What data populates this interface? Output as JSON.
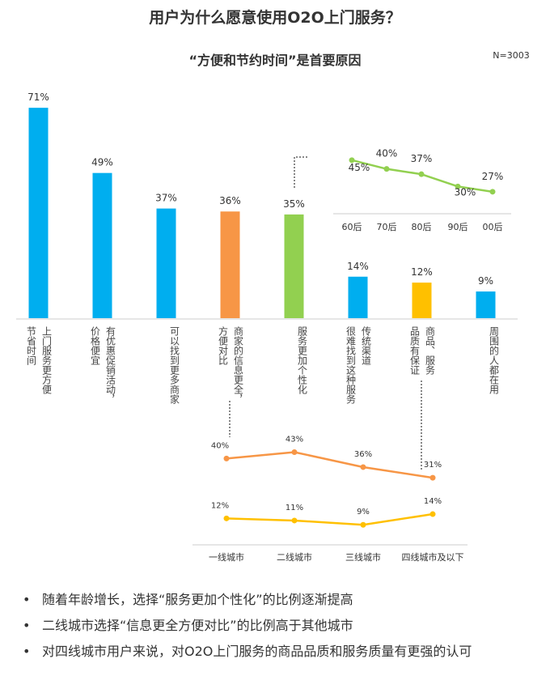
{
  "title": "用户为什么愿意使用O2O上门服务？",
  "subtitle": "“方便和节约时间”是首要原因",
  "note": "N=3003",
  "bullets": [
    "随着年龄增长，选择“服务更加个性化”的比例逐渐提高",
    "二线城市选择“信息更全方便对比”的比例高于其他城市",
    "对四线城市用户来说，对O2O上门服务的商品品质和服务质量有更强的认可"
  ],
  "chart_data": [
    {
      "type": "bar",
      "categories": [
        [
          "上门服务更方便",
          "节省时间"
        ],
        [
          "有优惠促销活动，",
          "价格便宜"
        ],
        [
          "可以找到更多商家"
        ],
        [
          "商家的信息更全，",
          "方便对比"
        ],
        [
          "服务更加个性化"
        ],
        [
          "传统渠道",
          "很难找到这种服务"
        ],
        [
          "商品、服务",
          "品质有保证"
        ],
        [
          "周围的人都在用"
        ]
      ],
      "values": [
        71,
        49,
        37,
        36,
        35,
        14,
        12,
        9
      ],
      "value_labels": [
        "71%",
        "49%",
        "37%",
        "36%",
        "35%",
        "14%",
        "12%",
        "9%"
      ],
      "colors": [
        "#00aeef",
        "#00aeef",
        "#00aeef",
        "#f79646",
        "#92d050",
        "#00aeef",
        "#ffc000",
        "#00aeef"
      ],
      "ylim": [
        0,
        100
      ]
    },
    {
      "type": "line",
      "categories": [
        "60后",
        "70后",
        "80后",
        "90后",
        "00后"
      ],
      "series": [
        {
          "color": "#92d050",
          "values": [
            45,
            40,
            37,
            30,
            27
          ],
          "value_labels": [
            "45%",
            "40%",
            "37%",
            "30%",
            "27%"
          ]
        }
      ],
      "ylim": [
        20,
        50
      ]
    },
    {
      "type": "line",
      "categories": [
        "一线城市",
        "二线城市",
        "三线城市",
        "四线城市及以下"
      ],
      "series": [
        {
          "color": "#f79646",
          "values": [
            40,
            43,
            36,
            31
          ],
          "value_labels": [
            "40%",
            "43%",
            "36%",
            "31%"
          ]
        },
        {
          "color": "#ffc000",
          "values": [
            12,
            11,
            9,
            14
          ],
          "value_labels": [
            "12%",
            "11%",
            "9%",
            "14%"
          ]
        }
      ],
      "ylim": [
        0,
        50
      ]
    }
  ]
}
